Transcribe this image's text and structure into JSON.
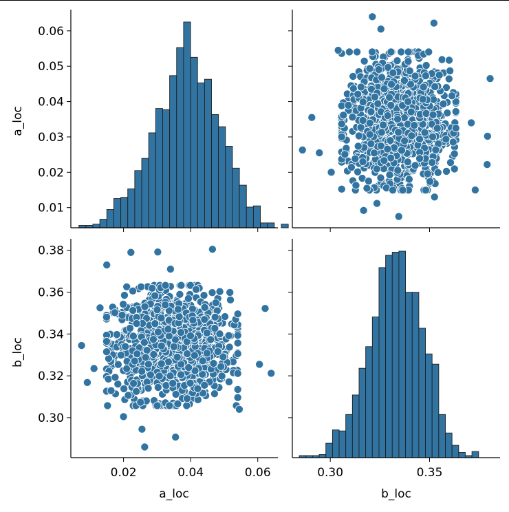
{
  "chart_data": {
    "type": "pairplot",
    "variables": [
      "a_loc",
      "b_loc"
    ],
    "colors": {
      "fill": "#3274a1",
      "marker_edge": "#ffffff",
      "bar_edge": "#1f1f1f",
      "axis": "#000000"
    },
    "axes": {
      "a_loc": {
        "label": "a_loc",
        "range": [
          0.0043,
          0.066
        ],
        "ticks": [
          0.01,
          0.02,
          0.03,
          0.04,
          0.05,
          0.06
        ],
        "tick_labels": [
          "0.01",
          "0.02",
          "0.03",
          "0.04",
          "0.05",
          "0.06"
        ],
        "x_ticks": [
          0.02,
          0.04,
          0.06
        ],
        "x_tick_labels": [
          "0.02",
          "0.04",
          "0.06"
        ]
      },
      "b_loc": {
        "label": "b_loc",
        "range": [
          0.2809,
          0.3855
        ],
        "ticks": [
          0.3,
          0.32,
          0.34,
          0.36,
          0.38
        ],
        "tick_labels": [
          "0.30",
          "0.32",
          "0.34",
          "0.36",
          "0.38"
        ],
        "x_ticks": [
          0.3,
          0.35
        ],
        "x_tick_labels": [
          "0.30",
          "0.35"
        ]
      }
    },
    "hist_a": {
      "bin_start": 0.0067,
      "bin_width": 0.00208,
      "counts": [
        2,
        2,
        3,
        7,
        15,
        24,
        25,
        32,
        47,
        57,
        78,
        98,
        97,
        125,
        148,
        169,
        140,
        119,
        122,
        93,
        83,
        67,
        49,
        35,
        17,
        18,
        4,
        4,
        0,
        3
      ]
    },
    "hist_b": {
      "bin_start": 0.2844,
      "bin_width": 0.003344,
      "counts": [
        2,
        2,
        2,
        3,
        14,
        27,
        26,
        42,
        61,
        87,
        108,
        137,
        185,
        197,
        200,
        201,
        161,
        161,
        126,
        101,
        91,
        42,
        24,
        12,
        5,
        2,
        6
      ]
    },
    "scatter": {
      "n_points": 1200,
      "a_mean": 0.0345,
      "a_sd": 0.0085,
      "b_mean": 0.3345,
      "b_sd": 0.0125,
      "outliers": [
        [
          0.0075,
          0.3345
        ],
        [
          0.0092,
          0.3168
        ],
        [
          0.0112,
          0.3235
        ],
        [
          0.013,
          0.3525
        ],
        [
          0.015,
          0.373
        ],
        [
          0.0222,
          0.379
        ],
        [
          0.0302,
          0.3792
        ],
        [
          0.0465,
          0.3805
        ],
        [
          0.0263,
          0.286
        ],
        [
          0.0255,
          0.2945
        ],
        [
          0.0355,
          0.2907
        ],
        [
          0.064,
          0.3212
        ],
        [
          0.0622,
          0.3522
        ],
        [
          0.0605,
          0.3255
        ],
        [
          0.0545,
          0.304
        ],
        [
          0.02,
          0.3005
        ],
        [
          0.034,
          0.371
        ]
      ]
    }
  }
}
